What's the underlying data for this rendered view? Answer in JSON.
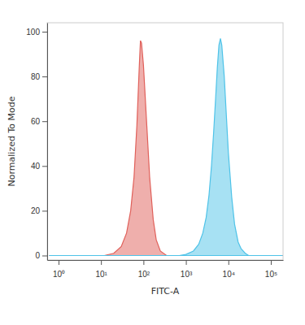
{
  "chart_data": {
    "type": "area",
    "x_label": "FITC-A",
    "y_label": "Normalized To Mode",
    "log": "x",
    "xlim": [
      0.54,
      194000
    ],
    "xticks": [
      {
        "value": 1,
        "label": "10⁰"
      },
      {
        "value": 10,
        "label": "10¹"
      },
      {
        "value": 100,
        "label": "10²"
      },
      {
        "value": 1000,
        "label": "10³"
      },
      {
        "value": 10000,
        "label": "10⁴"
      },
      {
        "value": 100000,
        "label": "10⁵"
      }
    ],
    "ylim": [
      -2,
      104
    ],
    "yticks": [
      0,
      20,
      40,
      60,
      80,
      100
    ],
    "grid": false,
    "series": [
      {
        "color": "#e0605a",
        "x": [
          0.6,
          12,
          20,
          30,
          40,
          50,
          60,
          70,
          80,
          85,
          90,
          100,
          120,
          140,
          170,
          200,
          250,
          350,
          190000
        ],
        "values": [
          0,
          0,
          1,
          4,
          10,
          20,
          35,
          58,
          85,
          96,
          95,
          85,
          58,
          35,
          16,
          7,
          2,
          0,
          0
        ]
      },
      {
        "color": "#4fc3e8",
        "x": [
          0.6,
          700,
          1000,
          1500,
          2000,
          2500,
          3000,
          3500,
          4000,
          4500,
          5000,
          5500,
          6000,
          6500,
          7000,
          8000,
          9000,
          10000,
          12000,
          14000,
          17000,
          20000,
          25000,
          30000,
          190000
        ],
        "values": [
          0,
          0,
          0.5,
          2,
          5,
          10,
          17,
          27,
          40,
          55,
          70,
          84,
          94,
          97,
          94,
          80,
          62,
          46,
          26,
          14,
          6,
          3,
          1,
          0,
          0
        ]
      }
    ]
  }
}
